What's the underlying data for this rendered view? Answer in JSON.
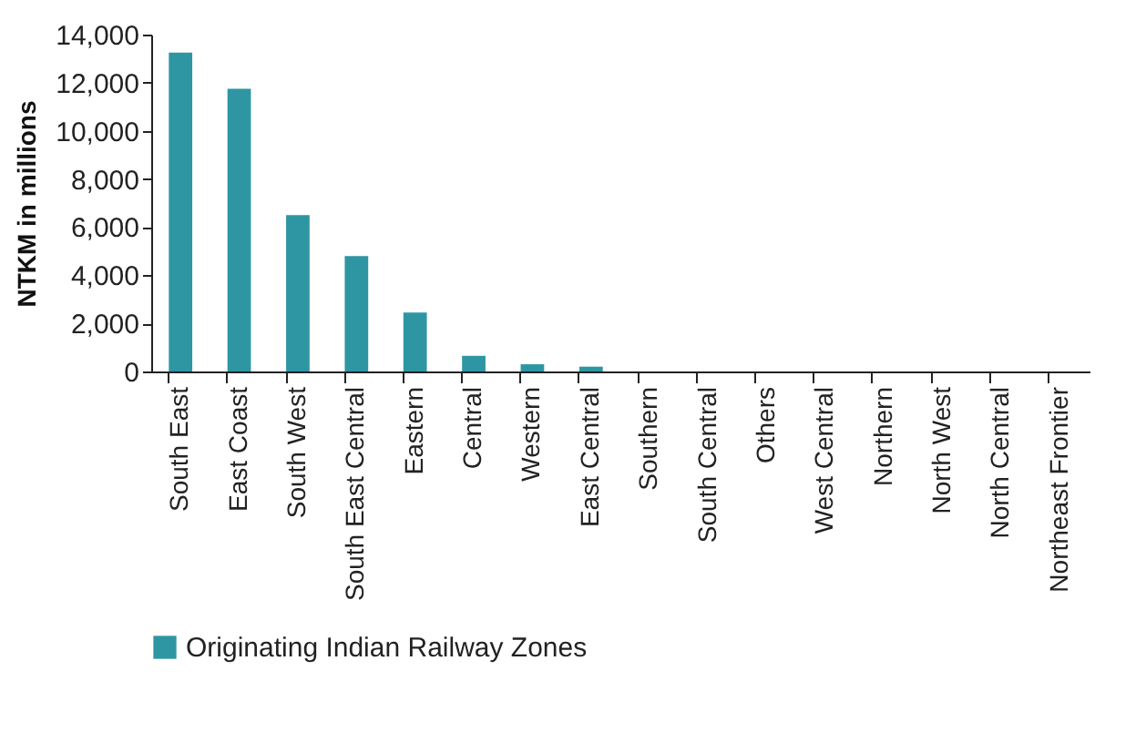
{
  "chart_data": {
    "type": "bar",
    "ylabel": "NTKM in millions",
    "categories": [
      "South East",
      "East Coast",
      "South West",
      "South East Central",
      "Eastern",
      "Central",
      "Western",
      "East Central",
      "Southern",
      "South Central",
      "Others",
      "West Central",
      "Northern",
      "North West",
      "North Central",
      "Northeast Frontier"
    ],
    "series": [
      {
        "name": "Originating Indian Railway Zones",
        "color": "#2e96a3",
        "values": [
          13250,
          11750,
          6500,
          4800,
          2450,
          650,
          300,
          200,
          0,
          0,
          0,
          0,
          0,
          0,
          0,
          0
        ]
      }
    ],
    "ylim": [
      0,
      14000
    ],
    "yticks": [
      0,
      {
        "value": 2000,
        "label": "2,000"
      },
      {
        "value": 4000,
        "label": "4,000"
      },
      {
        "value": 6000,
        "label": "6,000"
      },
      {
        "value": 8000,
        "label": "8,000"
      },
      {
        "value": 10000,
        "label": "10,000"
      },
      {
        "value": 12000,
        "label": "12,000"
      },
      {
        "value": 14000,
        "label": "14,000"
      }
    ],
    "grid": false,
    "legend": "bottom"
  }
}
